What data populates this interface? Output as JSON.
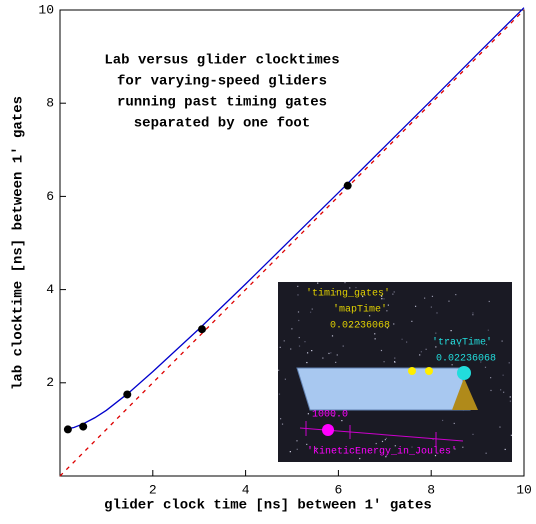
{
  "chart_data": {
    "type": "line",
    "title_lines": [
      "Lab versus glider clocktimes",
      "for varying-speed gliders",
      "running past timing gates",
      "separated by one foot"
    ],
    "x_label": "glider clock time [ns] between 1' gates",
    "y_label": "lab clocktime [ns] between 1' gates",
    "xlim": [
      0,
      10
    ],
    "ylim": [
      0,
      10
    ],
    "xticks": [
      2,
      4,
      6,
      8,
      10
    ],
    "yticks": [
      2,
      4,
      6,
      8,
      10
    ],
    "series": [
      {
        "kind": "line",
        "color": "#0000cc",
        "x": [
          0.15,
          0.3,
          0.5,
          0.75,
          1,
          1.5,
          2,
          3,
          4,
          5,
          6,
          7,
          8,
          9,
          10
        ],
        "values": [
          1.01,
          1.04,
          1.12,
          1.25,
          1.41,
          1.8,
          2.24,
          3.16,
          4.12,
          5.1,
          6.08,
          7.07,
          8.06,
          9.06,
          10.05
        ]
      },
      {
        "kind": "dashed",
        "color": "#dd0000",
        "x": [
          0,
          10
        ],
        "values": [
          0,
          10
        ]
      },
      {
        "kind": "points",
        "color": "#000000",
        "x": [
          0.17,
          0.5,
          1.45,
          3.06,
          6.2
        ],
        "values": [
          1.0,
          1.06,
          1.75,
          3.15,
          6.23
        ]
      }
    ],
    "inset_labels": [
      "'timing_gates'",
      "'mapTime'",
      "0.02236068",
      "'travTime'",
      "0.02236068",
      "1000.0",
      "'kineticEnergy_in_Joules'"
    ]
  }
}
